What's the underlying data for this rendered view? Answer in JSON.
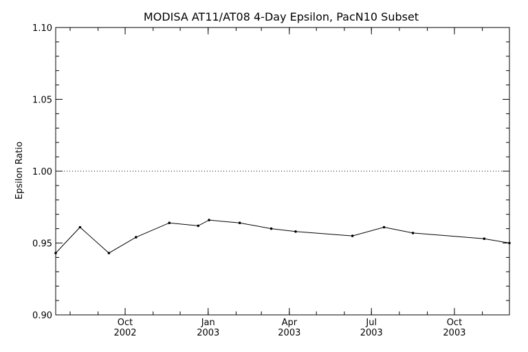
{
  "chart_data": {
    "type": "line",
    "title": "MODISA AT11/AT08 4-Day Epsilon, PacN10 Subset",
    "ylabel": "Epsilon Ratio",
    "xlabel": "",
    "ylim": [
      0.9,
      1.1
    ],
    "xlim": [
      "2002-07-16",
      "2003-12-01"
    ],
    "yticks": [
      "0.90",
      "0.95",
      "1.00",
      "1.05",
      "1.10"
    ],
    "xticks": [
      {
        "date": "2002-10-01",
        "month": "Oct",
        "year": "2002"
      },
      {
        "date": "2003-01-01",
        "month": "Jan",
        "year": "2003"
      },
      {
        "date": "2003-04-01",
        "month": "Apr",
        "year": "2003"
      },
      {
        "date": "2003-07-01",
        "month": "Jul",
        "year": "2003"
      },
      {
        "date": "2003-10-01",
        "month": "Oct",
        "year": "2003"
      }
    ],
    "reference_line": 1.0,
    "grid": false,
    "series": [
      {
        "x": [
          "2002-07-16",
          "2002-08-12",
          "2002-09-13",
          "2002-10-13",
          "2002-11-19",
          "2002-12-21",
          "2003-01-02",
          "2003-02-05",
          "2003-03-12",
          "2003-04-08",
          "2003-06-10",
          "2003-07-15",
          "2003-08-16",
          "2003-11-03",
          "2003-12-01"
        ],
        "values": [
          0.943,
          0.961,
          0.943,
          0.954,
          0.964,
          0.962,
          0.966,
          0.964,
          0.96,
          0.958,
          0.955,
          0.961,
          0.957,
          0.953,
          0.95
        ]
      }
    ]
  }
}
